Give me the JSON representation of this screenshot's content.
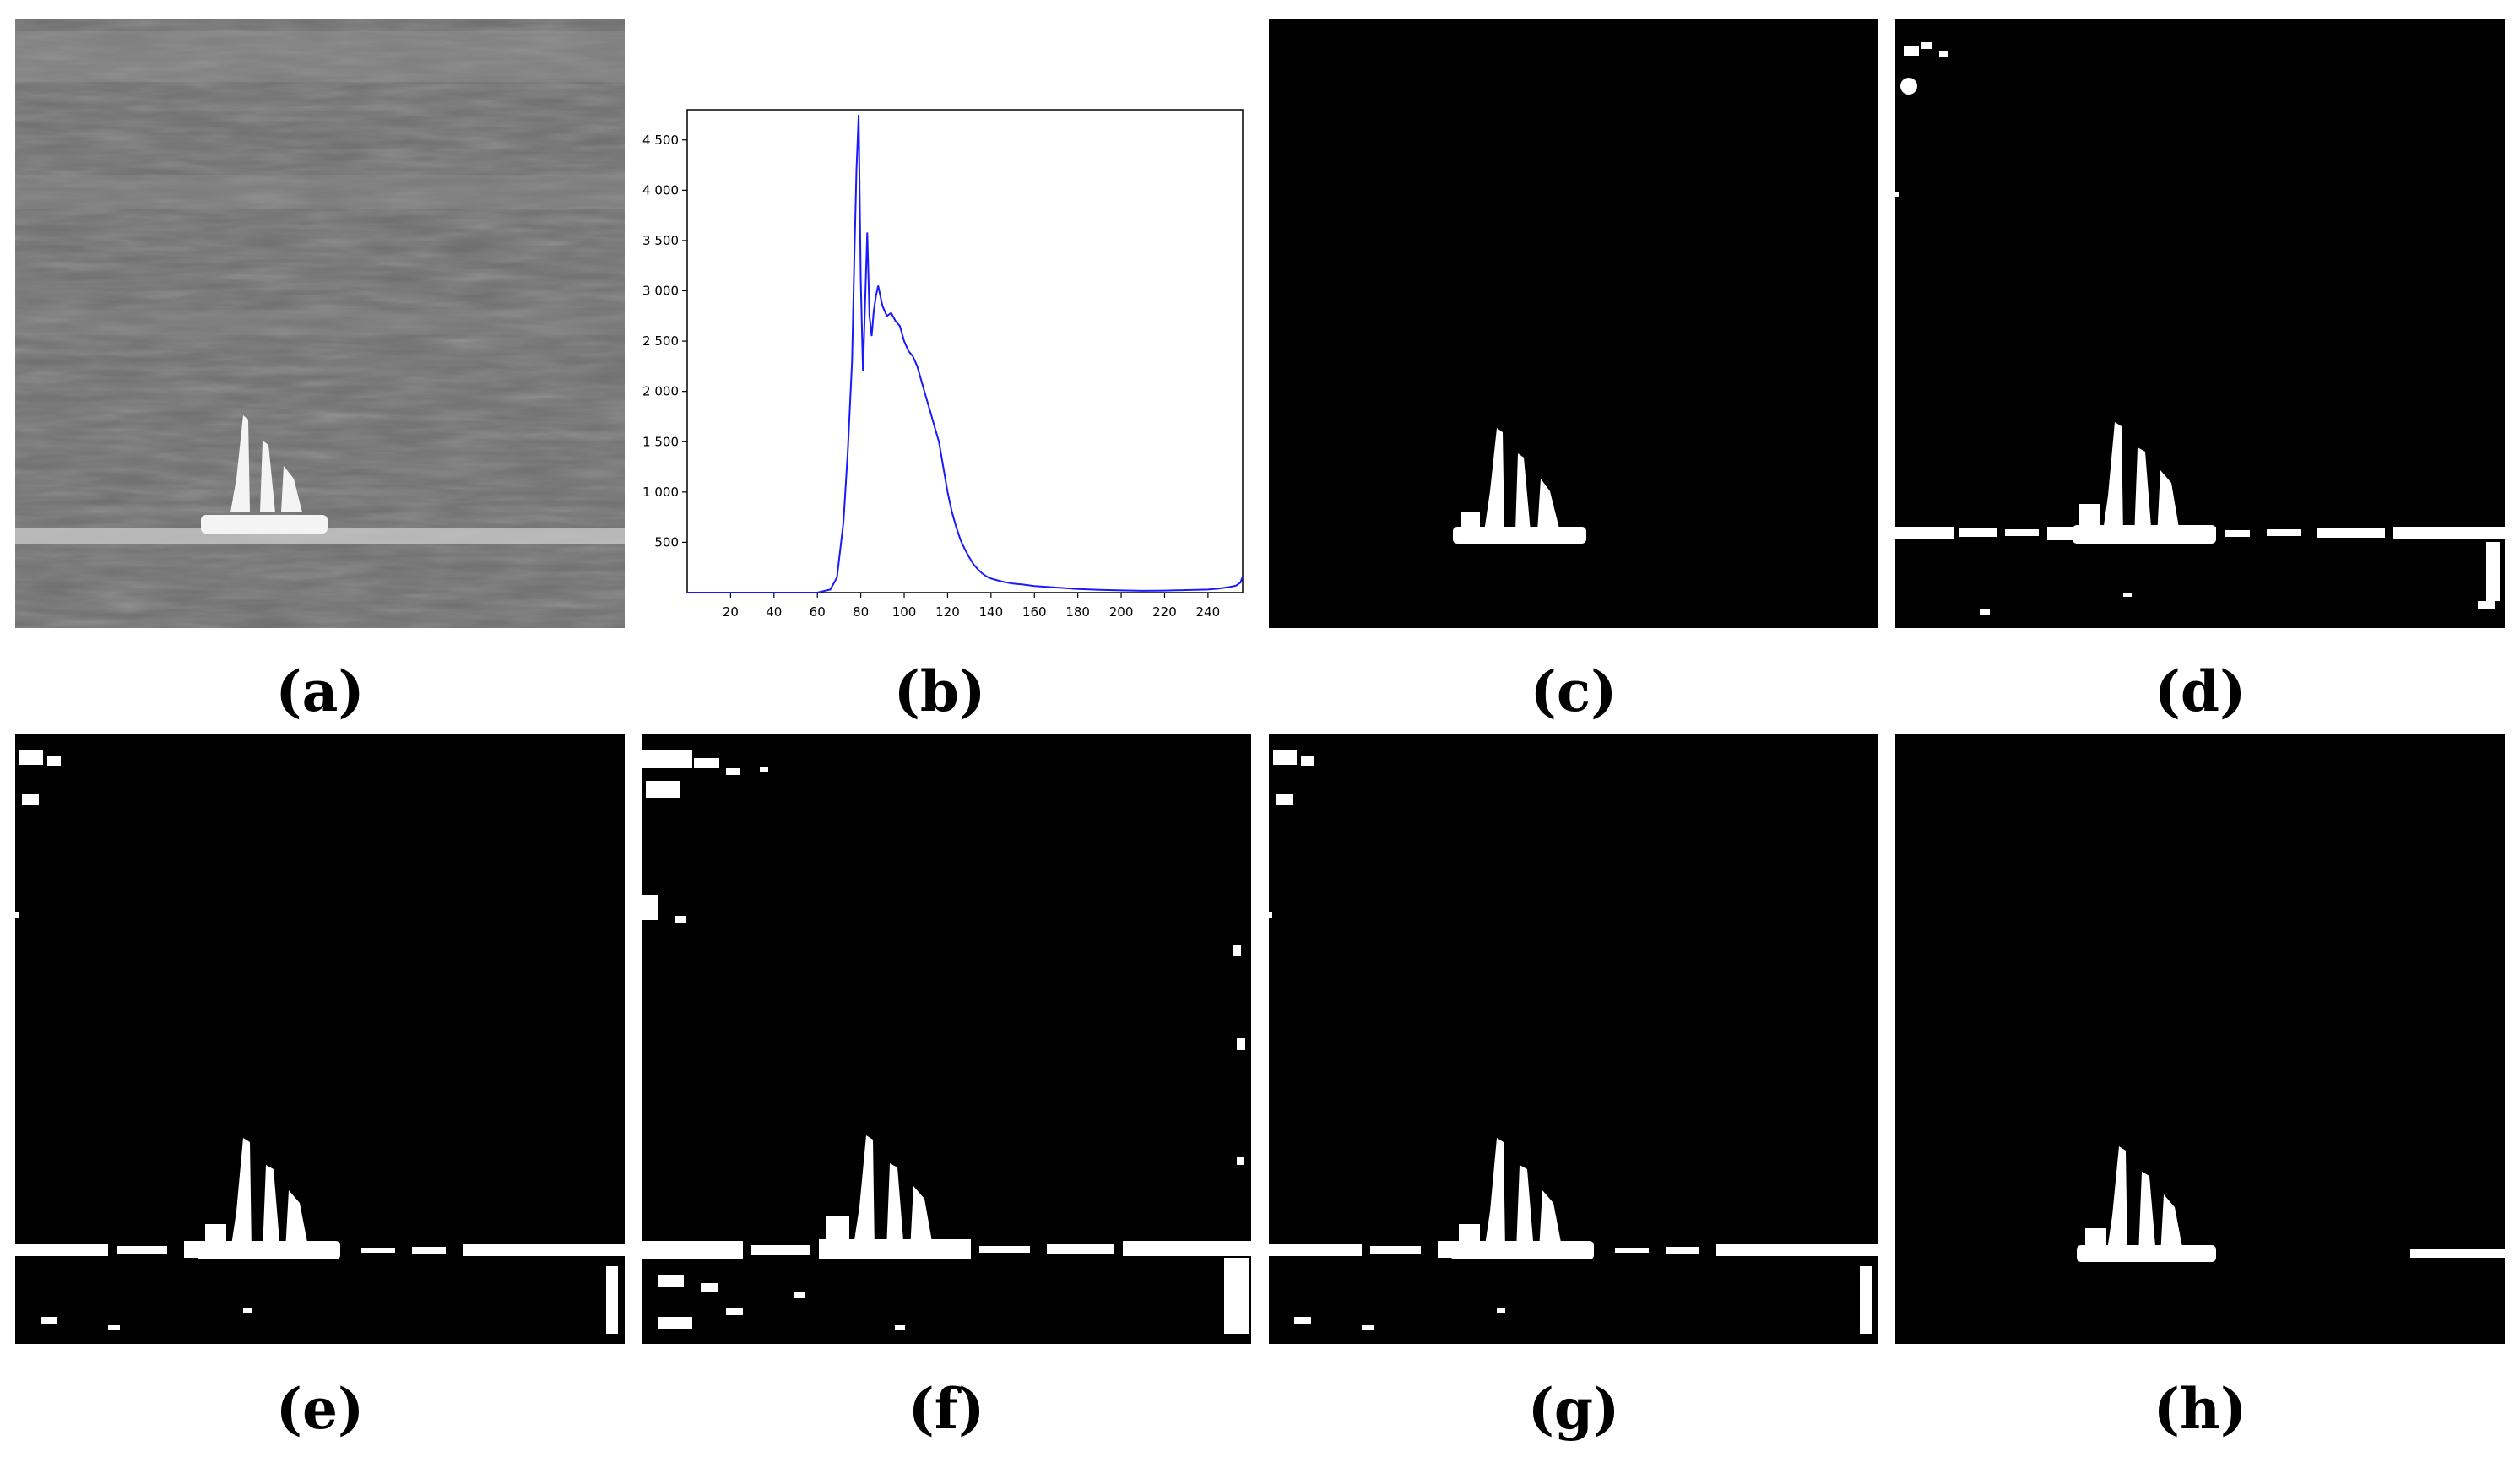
{
  "captions": {
    "a": "(a)",
    "b": "(b)",
    "c": "(c)",
    "d": "(d)",
    "e": "(e)",
    "f": "(f)",
    "g": "(g)",
    "h": "(h)"
  },
  "chart_data": {
    "type": "line",
    "title": "",
    "xlabel": "",
    "ylabel": "",
    "xlim": [
      0,
      256
    ],
    "ylim": [
      0,
      4800
    ],
    "x_ticks": [
      "20",
      "40",
      "60",
      "80",
      "100",
      "120",
      "140",
      "160",
      "180",
      "200",
      "220",
      "240"
    ],
    "y_ticks": [
      "500",
      "1 000",
      "1 500",
      "2 000",
      "2 500",
      "3 000",
      "3 500",
      "4 000",
      "4 500"
    ],
    "grid": false,
    "line_color": "#1a1aff",
    "x": [
      0,
      60,
      66,
      69,
      72,
      74,
      76,
      77,
      78,
      79,
      80,
      81,
      82,
      83,
      84,
      85,
      86,
      87,
      88,
      90,
      92,
      94,
      96,
      98,
      100,
      102,
      104,
      106,
      108,
      110,
      112,
      114,
      116,
      118,
      120,
      122,
      124,
      126,
      128,
      130,
      132,
      134,
      136,
      138,
      140,
      145,
      150,
      155,
      160,
      170,
      180,
      190,
      200,
      210,
      220,
      230,
      240,
      245,
      250,
      253,
      255,
      256
    ],
    "y": [
      0,
      0,
      30,
      150,
      700,
      1400,
      2300,
      3300,
      4200,
      4750,
      3100,
      2200,
      2900,
      3580,
      2750,
      2550,
      2800,
      2950,
      3050,
      2850,
      2750,
      2780,
      2700,
      2650,
      2500,
      2400,
      2350,
      2250,
      2100,
      1950,
      1800,
      1650,
      1500,
      1250,
      1000,
      800,
      650,
      520,
      430,
      350,
      280,
      230,
      190,
      160,
      140,
      110,
      90,
      80,
      65,
      50,
      35,
      28,
      22,
      18,
      20,
      25,
      30,
      40,
      55,
      70,
      100,
      160
    ]
  }
}
